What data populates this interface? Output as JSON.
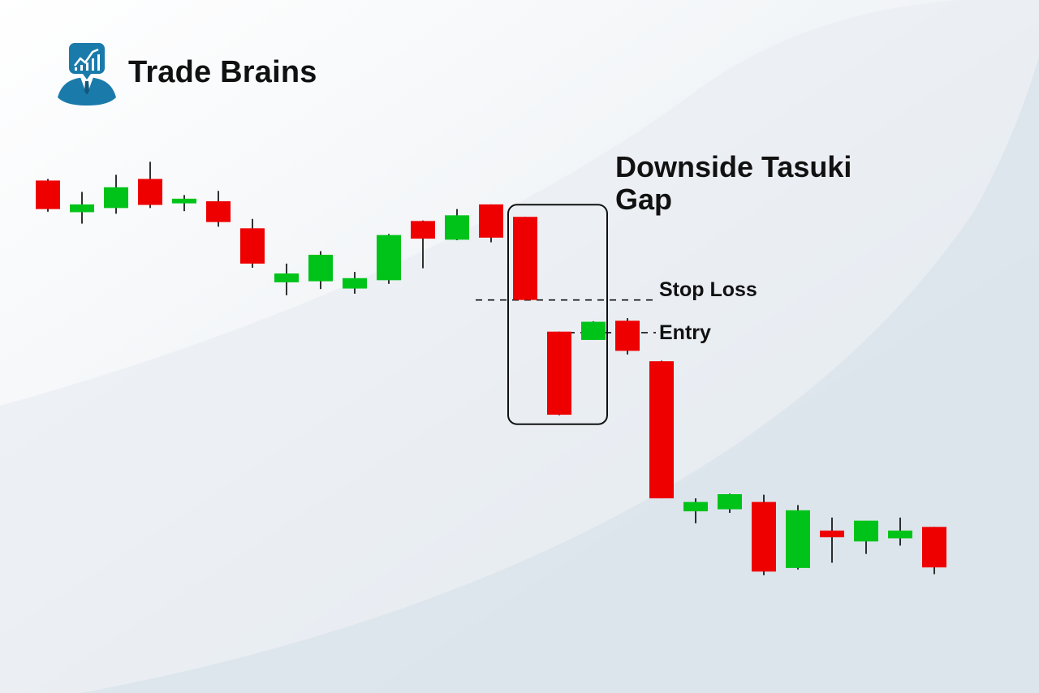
{
  "brand": {
    "name": "Trade Brains",
    "logo_icon": "analyst-chart-icon"
  },
  "colors": {
    "bullish": "#00C319",
    "bearish": "#EE0000",
    "wick": "#000000",
    "accent": "#1A7BAA"
  },
  "chart_data": {
    "type": "candlestick",
    "title": "Downside Tasuki Gap",
    "title_lines": [
      "Downside Tasuki Gap"
    ],
    "xlabel": "",
    "ylabel": "",
    "grid": false,
    "ylim": [
      0,
      100
    ],
    "candles": [
      {
        "open": 87.9,
        "high": 88.2,
        "low": 81.9,
        "close": 82.4
      },
      {
        "open": 81.8,
        "high": 85.7,
        "low": 79.6,
        "close": 83.3
      },
      {
        "open": 82.6,
        "high": 89.0,
        "low": 81.5,
        "close": 86.6
      },
      {
        "open": 88.2,
        "high": 91.5,
        "low": 82.6,
        "close": 83.2
      },
      {
        "open": 83.5,
        "high": 85.1,
        "low": 82.0,
        "close": 84.4
      },
      {
        "open": 83.9,
        "high": 85.9,
        "low": 79.0,
        "close": 79.9
      },
      {
        "open": 78.7,
        "high": 80.5,
        "low": 71.1,
        "close": 71.9
      },
      {
        "open": 68.3,
        "high": 71.9,
        "low": 65.8,
        "close": 70.0
      },
      {
        "open": 68.5,
        "high": 74.3,
        "low": 67.0,
        "close": 73.6
      },
      {
        "open": 67.1,
        "high": 70.3,
        "low": 66.1,
        "close": 69.1
      },
      {
        "open": 68.7,
        "high": 77.6,
        "low": 68.0,
        "close": 77.4
      },
      {
        "open": 80.1,
        "high": 80.2,
        "low": 71.0,
        "close": 76.7
      },
      {
        "open": 76.5,
        "high": 82.4,
        "low": 76.4,
        "close": 81.2
      },
      {
        "open": 83.3,
        "high": 83.3,
        "low": 76.0,
        "close": 76.9
      },
      {
        "open": 80.9,
        "high": 80.9,
        "low": 64.8,
        "close": 64.9
      },
      {
        "open": 58.8,
        "high": 58.8,
        "low": 42.7,
        "close": 42.8
      },
      {
        "open": 57.2,
        "high": 60.8,
        "low": 57.2,
        "close": 60.7
      },
      {
        "open": 60.9,
        "high": 61.4,
        "low": 54.4,
        "close": 55.1
      },
      {
        "open": 53.1,
        "high": 53.2,
        "low": 26.7,
        "close": 26.7
      },
      {
        "open": 24.2,
        "high": 26.7,
        "low": 21.9,
        "close": 26.0
      },
      {
        "open": 24.6,
        "high": 27.6,
        "low": 23.9,
        "close": 27.5
      },
      {
        "open": 26.0,
        "high": 27.4,
        "low": 11.9,
        "close": 12.6
      },
      {
        "open": 13.3,
        "high": 25.4,
        "low": 13.0,
        "close": 24.4
      },
      {
        "open": 20.5,
        "high": 23.0,
        "low": 14.3,
        "close": 19.2
      },
      {
        "open": 18.4,
        "high": 22.3,
        "low": 16.0,
        "close": 22.4
      },
      {
        "open": 19.0,
        "high": 23.0,
        "low": 17.6,
        "close": 20.5
      },
      {
        "open": 21.2,
        "high": 21.2,
        "low": 12.1,
        "close": 13.4
      }
    ],
    "pattern": {
      "name": "Downside Tasuki Gap",
      "start_index": 14,
      "end_index": 15
    },
    "levels": [
      {
        "label": "Stop Loss",
        "value": 64.9
      },
      {
        "label": "Entry",
        "value": 58.6
      }
    ]
  }
}
